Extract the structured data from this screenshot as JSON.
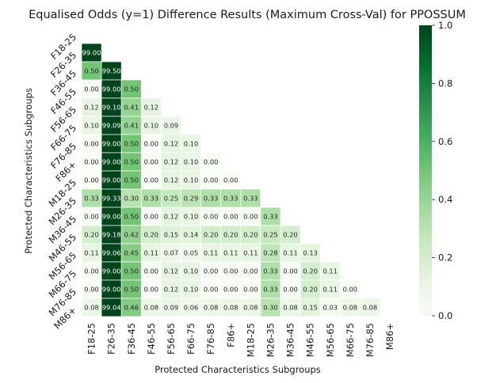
{
  "chart_data": {
    "type": "heatmap",
    "title": "Equalised Odds (y=1)  Difference Results (Maximum Cross-Val) for PPOSSUM",
    "xlabel": "Protected Characteristics Subgroups",
    "ylabel": "Protected Characteristics Subgroups",
    "categories": [
      "F18-25",
      "F26-35",
      "F36-45",
      "F46-55",
      "F56-65",
      "F66-75",
      "F76-85",
      "F86+",
      "M18-25",
      "M26-35",
      "M36-45",
      "M46-55",
      "M56-65",
      "M66-75",
      "M76-85",
      "M86+"
    ],
    "mask": "upper-triangle-including-diagonal",
    "values": [
      [],
      [
        99.0
      ],
      [
        0.5,
        99.5
      ],
      [
        0.0,
        99.0,
        0.5
      ],
      [
        0.12,
        99.1,
        0.41,
        0.12
      ],
      [
        0.1,
        99.09,
        0.41,
        0.1,
        0.09
      ],
      [
        0.0,
        99.0,
        0.5,
        0.0,
        0.12,
        0.1
      ],
      [
        0.0,
        99.0,
        0.5,
        0.0,
        0.12,
        0.1,
        0.0
      ],
      [
        0.0,
        99.0,
        0.5,
        0.0,
        0.12,
        0.1,
        0.0,
        0.0
      ],
      [
        0.33,
        99.33,
        0.3,
        0.33,
        0.25,
        0.29,
        0.33,
        0.33,
        0.33
      ],
      [
        0.0,
        99.0,
        0.5,
        0.0,
        0.12,
        0.1,
        0.0,
        0.0,
        0.0,
        0.33
      ],
      [
        0.2,
        99.18,
        0.42,
        0.2,
        0.15,
        0.14,
        0.2,
        0.2,
        0.2,
        0.25,
        0.2
      ],
      [
        0.11,
        99.06,
        0.45,
        0.11,
        0.07,
        0.05,
        0.11,
        0.11,
        0.11,
        0.28,
        0.11,
        0.13
      ],
      [
        0.0,
        99.0,
        0.5,
        0.0,
        0.12,
        0.1,
        0.0,
        0.0,
        0.0,
        0.33,
        0.0,
        0.2,
        0.11
      ],
      [
        0.0,
        99.0,
        0.5,
        0.0,
        0.12,
        0.1,
        0.0,
        0.0,
        0.0,
        0.33,
        0.0,
        0.2,
        0.11,
        0.0
      ],
      [
        0.08,
        99.04,
        0.46,
        0.08,
        0.09,
        0.06,
        0.08,
        0.08,
        0.08,
        0.3,
        0.08,
        0.15,
        0.03,
        0.08,
        0.08
      ]
    ],
    "value_format": "2 decimals",
    "colorscale": {
      "name": "Greens",
      "vmin": 0.0,
      "vmax": 1.0,
      "ticks": [
        "0.0",
        "0.2",
        "0.4",
        "0.6",
        "0.8",
        "1.0"
      ],
      "stops": [
        "#f7fcf5",
        "#e5f5e0",
        "#c7e9c0",
        "#a1d99b",
        "#74c476",
        "#41ab5d",
        "#238b45",
        "#006d2c",
        "#00441b"
      ]
    },
    "grid": false,
    "background": "#ffffff",
    "cell_border_color": "#ffffff"
  }
}
